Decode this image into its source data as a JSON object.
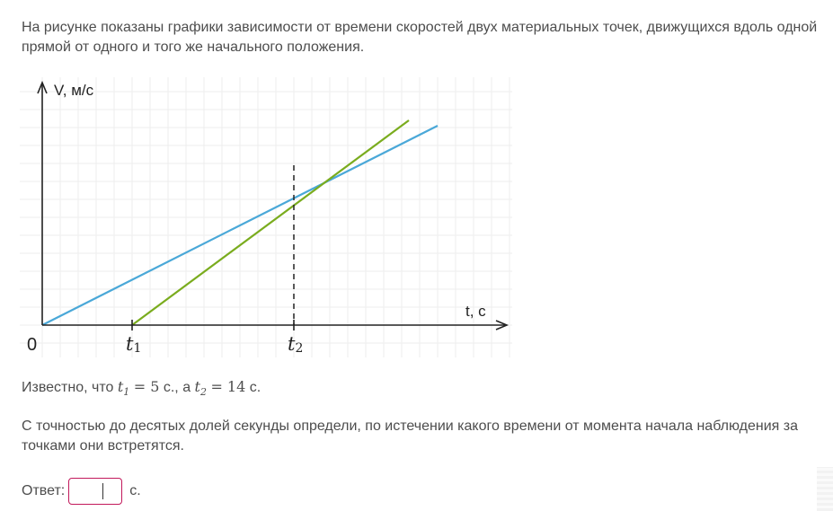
{
  "question": {
    "text": "На рисунке показаны графики зависимости от времени скоростей двух материальных точек, движущихся вдоль одной прямой от одного и того же начального положения."
  },
  "chart_data": {
    "type": "line",
    "title": "",
    "xlabel": "t, с",
    "ylabel": "V, м/с",
    "origin_label": "0",
    "tick_labels": [
      {
        "base": "t",
        "sub": "1",
        "x": 5
      },
      {
        "base": "t",
        "sub": "2",
        "x": 14
      }
    ],
    "xlim": [
      0,
      26
    ],
    "ylim": [
      0,
      14
    ],
    "grid": true,
    "series": [
      {
        "color": "#4aa8d8",
        "points": [
          [
            0,
            0
          ],
          [
            22,
            11.1
          ]
        ]
      },
      {
        "color": "#7aac1e",
        "points": [
          [
            5,
            0
          ],
          [
            20.4,
            11.4
          ]
        ]
      }
    ],
    "annotations": [
      {
        "type": "dashed-vertical",
        "x": 14,
        "y": 8.9
      }
    ]
  },
  "known": {
    "prefix": "Известно, что",
    "t1_var": "t",
    "t1_sub": "1",
    "t1_eq": "= 5",
    "t1_unit": "с., а",
    "t2_var": "t",
    "t2_sub": "2",
    "t2_eq": "= 14",
    "t2_unit": "с."
  },
  "task": {
    "text": "С точностью до десятых долей секунды определи, по истечении какого времени от момента начала наблюдения за точками они встретятся."
  },
  "answer": {
    "label": "Ответ:",
    "value": "",
    "unit": "с."
  },
  "colors": {
    "blue_line": "#4aa8d8",
    "green_line": "#7aac1e",
    "input_border": "#c2185b",
    "grid": "#eeeeee"
  }
}
